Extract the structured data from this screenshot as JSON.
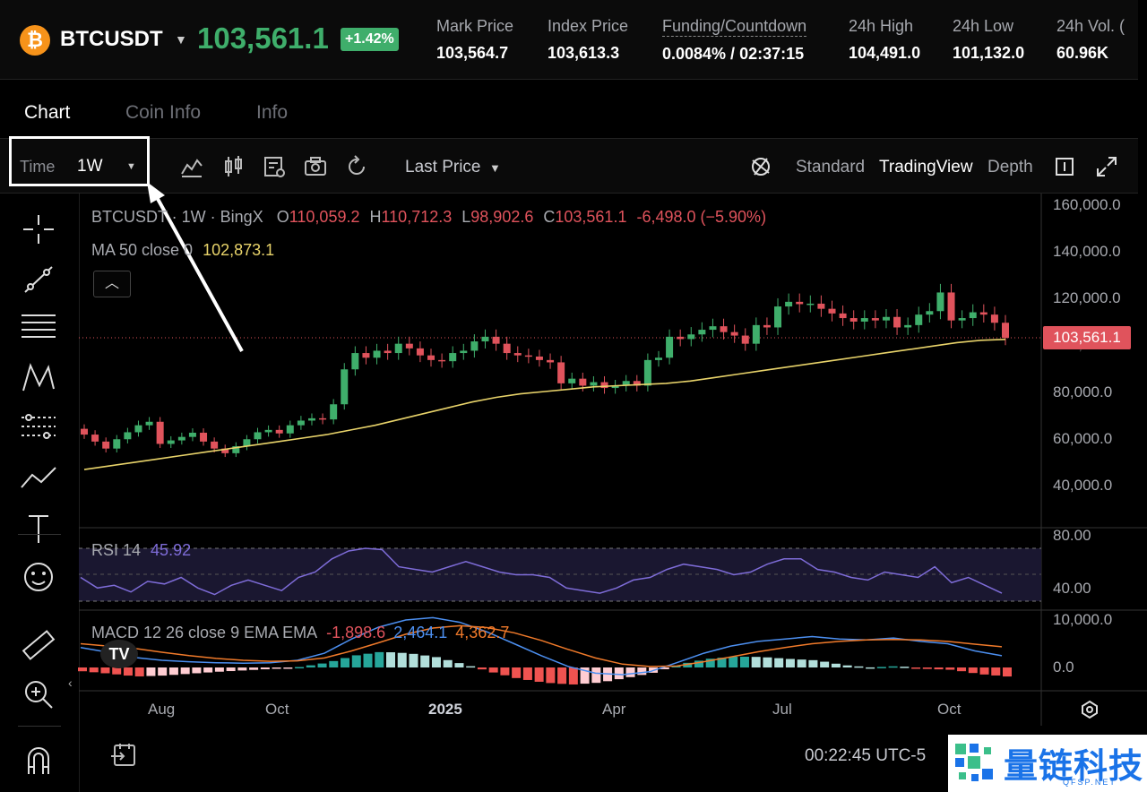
{
  "ticker": {
    "symbol": "BTCUSDT",
    "coin_icon": "bitcoin-icon",
    "last_price": "103,561.1",
    "change": "+1.42%",
    "stats": [
      {
        "key": "Mark Price",
        "value": "103,564.7"
      },
      {
        "key": "Index Price",
        "value": "103,613.3"
      },
      {
        "key": "Funding/Countdown",
        "value": "0.0084% / 02:37:15"
      },
      {
        "key": "24h High",
        "value": "104,491.0"
      },
      {
        "key": "24h Low",
        "value": "101,132.0"
      },
      {
        "key": "24h Vol. (",
        "value": "60.96K"
      }
    ]
  },
  "tabs": [
    {
      "label": "Chart",
      "active": true
    },
    {
      "label": "Coin Info",
      "active": false
    },
    {
      "label": "Info",
      "active": false
    }
  ],
  "toolbar": {
    "time_label": "Time",
    "time_value": "1W",
    "price_source": "Last Price",
    "modes": [
      {
        "label": "Standard",
        "active": false
      },
      {
        "label": "TradingView",
        "active": true
      },
      {
        "label": "Depth",
        "active": false
      }
    ]
  },
  "legend": {
    "title": "BTCUSDT · 1W · BingX",
    "o_label": "O",
    "o": "110,059.2",
    "h_label": "H",
    "h": "110,712.3",
    "l_label": "L",
    "l": "98,902.6",
    "c_label": "C",
    "c": "103,561.1",
    "change": "-6,498.0 (−5.90%)",
    "ma_label": "MA 50 close 0",
    "ma_value": "102,873.1",
    "rsi_label": "RSI 14",
    "rsi_value": "45.92",
    "macd_label": "MACD 12 26 close 9 EMA EMA",
    "macd_hist": "-1,898.6",
    "macd_line": "2,464.1",
    "macd_signal": "4,362.7"
  },
  "price_tag": "103,561.1",
  "clock": "00:22:45 UTC-5",
  "watermark": {
    "name": "量链科技",
    "url": "QFSP.NET"
  },
  "colors": {
    "up": "#3fae6b",
    "down": "#e0535c",
    "ma": "#e8d36a",
    "rsi": "#7e6cd8",
    "macd": "#4c8ff0",
    "signal": "#f07a2a"
  },
  "chart_data": [
    {
      "type": "candlestick",
      "title": "BTCUSDT · 1W · BingX",
      "x_ticks": [
        "Aug",
        "Oct",
        "2025",
        "Apr",
        "Jul",
        "Oct"
      ],
      "y_ticks": [
        "160,000.0",
        "140,000.0",
        "120,000.0",
        "100,000.0",
        "80,000.0",
        "60,000.0",
        "40,000.0"
      ],
      "ylim": [
        30000,
        163000
      ],
      "series": [
        {
          "name": "BTCUSDT",
          "close": [
            62000,
            59000,
            56000,
            60000,
            63000,
            66000,
            67500,
            58000,
            59500,
            61000,
            62800,
            59000,
            56000,
            54000,
            57000,
            60000,
            63000,
            64000,
            62500,
            66000,
            68000,
            69000,
            68500,
            75000,
            90000,
            97000,
            95000,
            98000,
            97000,
            101000,
            99000,
            96000,
            94000,
            93500,
            97000,
            98000,
            102000,
            104000,
            101000,
            97000,
            96000,
            95500,
            94000,
            93000,
            84000,
            86000,
            83000,
            84500,
            82000,
            83000,
            85000,
            83000,
            94000,
            95000,
            104000,
            103000,
            105000,
            107000,
            108500,
            106000,
            104500,
            101000,
            109000,
            108000,
            117000,
            119000,
            118000,
            118200,
            116000,
            114000,
            112000,
            110500,
            112000,
            111000,
            112500,
            108000,
            109000,
            113500,
            115000,
            123000,
            111000,
            112000,
            114500,
            113500,
            110000,
            103500
          ]
        }
      ]
    },
    {
      "type": "line",
      "name": "MA 50 close 0",
      "values": [
        47000,
        48500,
        50000,
        51500,
        53000,
        54500,
        56000,
        57500,
        59000,
        60500,
        62000,
        64000,
        66000,
        68500,
        71000,
        73500,
        76000,
        78000,
        79500,
        80500,
        81500,
        82500,
        83000,
        83500,
        84000,
        85000,
        86500,
        88000,
        89500,
        91000,
        92500,
        94000,
        95500,
        97000,
        98500,
        100000,
        101500,
        102500,
        102873
      ]
    },
    {
      "type": "line",
      "name": "RSI 14",
      "y_ticks": [
        "80.00",
        "40.00"
      ],
      "values": [
        58,
        50,
        52,
        47,
        55,
        53,
        58,
        50,
        45,
        52,
        56,
        52,
        48,
        58,
        62,
        72,
        78,
        80,
        79,
        66,
        64,
        62,
        66,
        70,
        66,
        62,
        60,
        60,
        58,
        50,
        48,
        46,
        50,
        56,
        58,
        64,
        68,
        66,
        64,
        60,
        62,
        68,
        72,
        72,
        64,
        62,
        58,
        56,
        62,
        60,
        58,
        66,
        54,
        58,
        52,
        46
      ]
    },
    {
      "type": "line",
      "name": "MACD 12 26 close 9 EMA EMA",
      "y_ticks": [
        "10,000.0",
        "0.0"
      ],
      "macd": [
        4200,
        3200,
        2100,
        1500,
        1200,
        1000,
        900,
        1000,
        1500,
        3000,
        6000,
        8500,
        10000,
        10500,
        9500,
        7500,
        5000,
        2500,
        200,
        -1200,
        -1500,
        -900,
        1000,
        3000,
        4500,
        5500,
        6000,
        6500,
        6000,
        5800,
        6200,
        5500,
        5000,
        3500,
        2464
      ],
      "signal": [
        5000,
        4500,
        4000,
        3200,
        2500,
        1900,
        1500,
        1300,
        1400,
        2000,
        3500,
        5200,
        7000,
        8300,
        8800,
        8400,
        7300,
        5700,
        3800,
        2000,
        700,
        200,
        300,
        1200,
        2200,
        3300,
        4200,
        5000,
        5500,
        5800,
        5900,
        5800,
        5500,
        4900,
        4362
      ]
    }
  ]
}
